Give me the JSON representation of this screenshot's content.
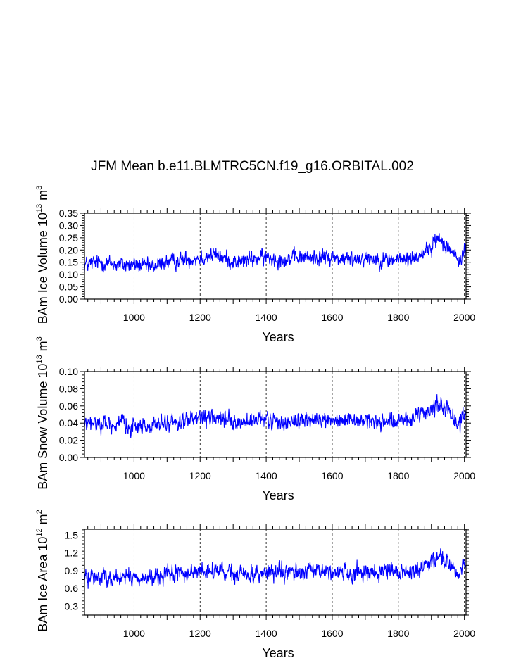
{
  "title": "JFM Mean b.e11.BLMTRC5CN.f19_g16.ORBITAL.002",
  "colors": {
    "series": "#0000ff",
    "axis": "#000000",
    "grid": "#000000"
  },
  "chart_data": [
    {
      "type": "line",
      "id": "ice-volume",
      "xlabel": "Years",
      "ylabel": {
        "prefix": "BAm Ice Volume 10",
        "exp": "13",
        "unit": " m",
        "unit_exp": "3"
      },
      "xlim": [
        850,
        2005
      ],
      "ylim": [
        0,
        0.35
      ],
      "xticks": [
        1000,
        1200,
        1400,
        1600,
        1800,
        2000
      ],
      "xtick_labels": [
        "1000",
        "1200",
        "1400",
        "1600",
        "1800",
        "2000"
      ],
      "yticks": [
        0,
        0.05,
        0.1,
        0.15,
        0.2,
        0.25,
        0.3,
        0.35
      ],
      "ytick_labels": [
        "0.00",
        "0.05",
        "0.10",
        "0.15",
        "0.20",
        "0.25",
        "0.30",
        "0.35"
      ],
      "series": [
        {
          "name": "BAm Ice Volume",
          "x_start": 850,
          "x_end": 2005,
          "anchors": [
            [
              850,
              0.14
            ],
            [
              900,
              0.15
            ],
            [
              950,
              0.14
            ],
            [
              1000,
              0.14
            ],
            [
              1050,
              0.13
            ],
            [
              1100,
              0.15
            ],
            [
              1150,
              0.16
            ],
            [
              1200,
              0.17
            ],
            [
              1250,
              0.18
            ],
            [
              1300,
              0.15
            ],
            [
              1350,
              0.16
            ],
            [
              1400,
              0.17
            ],
            [
              1450,
              0.16
            ],
            [
              1500,
              0.17
            ],
            [
              1550,
              0.17
            ],
            [
              1600,
              0.17
            ],
            [
              1650,
              0.16
            ],
            [
              1700,
              0.17
            ],
            [
              1750,
              0.16
            ],
            [
              1800,
              0.16
            ],
            [
              1850,
              0.17
            ],
            [
              1900,
              0.21
            ],
            [
              1920,
              0.25
            ],
            [
              1950,
              0.22
            ],
            [
              1980,
              0.15
            ],
            [
              2005,
              0.2
            ]
          ],
          "amplitude": 0.045,
          "range": [
            0.04,
            0.34
          ]
        }
      ]
    },
    {
      "type": "line",
      "id": "snow-volume",
      "xlabel": "Years",
      "ylabel": {
        "prefix": "BAm Snow Volume 10",
        "exp": "13",
        "unit": " m",
        "unit_exp": "3"
      },
      "xlim": [
        850,
        2005
      ],
      "ylim": [
        0,
        0.1
      ],
      "xticks": [
        1000,
        1200,
        1400,
        1600,
        1800,
        2000
      ],
      "xtick_labels": [
        "1000",
        "1200",
        "1400",
        "1600",
        "1800",
        "2000"
      ],
      "yticks": [
        0,
        0.02,
        0.04,
        0.06,
        0.08,
        0.1
      ],
      "ytick_labels": [
        "0.00",
        "0.02",
        "0.04",
        "0.06",
        "0.08",
        "0.10"
      ],
      "series": [
        {
          "name": "BAm Snow Volume",
          "x_start": 850,
          "x_end": 2005,
          "anchors": [
            [
              850,
              0.038
            ],
            [
              900,
              0.04
            ],
            [
              950,
              0.038
            ],
            [
              1000,
              0.037
            ],
            [
              1050,
              0.036
            ],
            [
              1100,
              0.04
            ],
            [
              1150,
              0.042
            ],
            [
              1200,
              0.044
            ],
            [
              1250,
              0.046
            ],
            [
              1300,
              0.04
            ],
            [
              1350,
              0.041
            ],
            [
              1400,
              0.043
            ],
            [
              1450,
              0.041
            ],
            [
              1500,
              0.043
            ],
            [
              1550,
              0.043
            ],
            [
              1600,
              0.044
            ],
            [
              1650,
              0.041
            ],
            [
              1700,
              0.043
            ],
            [
              1750,
              0.041
            ],
            [
              1800,
              0.042
            ],
            [
              1850,
              0.044
            ],
            [
              1900,
              0.055
            ],
            [
              1920,
              0.065
            ],
            [
              1950,
              0.055
            ],
            [
              1980,
              0.038
            ],
            [
              2005,
              0.055
            ]
          ],
          "amplitude": 0.013,
          "range": [
            0.008,
            0.092
          ]
        }
      ]
    },
    {
      "type": "line",
      "id": "ice-area",
      "xlabel": "Years",
      "ylabel": {
        "prefix": "BAm Ice Area 10",
        "exp": "12",
        "unit": " m",
        "unit_exp": "2"
      },
      "xlim": [
        850,
        2005
      ],
      "ylim": [
        0.15,
        1.6
      ],
      "xticks": [
        1000,
        1200,
        1400,
        1600,
        1800,
        2000
      ],
      "xtick_labels": [
        "1000",
        "1200",
        "1400",
        "1600",
        "1800",
        "2000"
      ],
      "yticks": [
        0.3,
        0.6,
        0.9,
        1.2,
        1.5
      ],
      "ytick_labels": [
        "0.3",
        "0.6",
        "0.9",
        "1.2",
        "1.5"
      ],
      "series": [
        {
          "name": "BAm Ice Area",
          "x_start": 850,
          "x_end": 2005,
          "anchors": [
            [
              850,
              0.78
            ],
            [
              900,
              0.8
            ],
            [
              950,
              0.78
            ],
            [
              1000,
              0.78
            ],
            [
              1050,
              0.76
            ],
            [
              1100,
              0.82
            ],
            [
              1150,
              0.86
            ],
            [
              1200,
              0.88
            ],
            [
              1250,
              0.9
            ],
            [
              1300,
              0.82
            ],
            [
              1350,
              0.84
            ],
            [
              1400,
              0.87
            ],
            [
              1450,
              0.85
            ],
            [
              1500,
              0.88
            ],
            [
              1550,
              0.88
            ],
            [
              1600,
              0.9
            ],
            [
              1650,
              0.86
            ],
            [
              1700,
              0.89
            ],
            [
              1750,
              0.86
            ],
            [
              1800,
              0.87
            ],
            [
              1850,
              0.9
            ],
            [
              1900,
              1.05
            ],
            [
              1920,
              1.2
            ],
            [
              1950,
              1.05
            ],
            [
              1980,
              0.8
            ],
            [
              2005,
              1.05
            ]
          ],
          "amplitude": 0.2,
          "range": [
            0.2,
            1.45
          ]
        }
      ]
    }
  ]
}
